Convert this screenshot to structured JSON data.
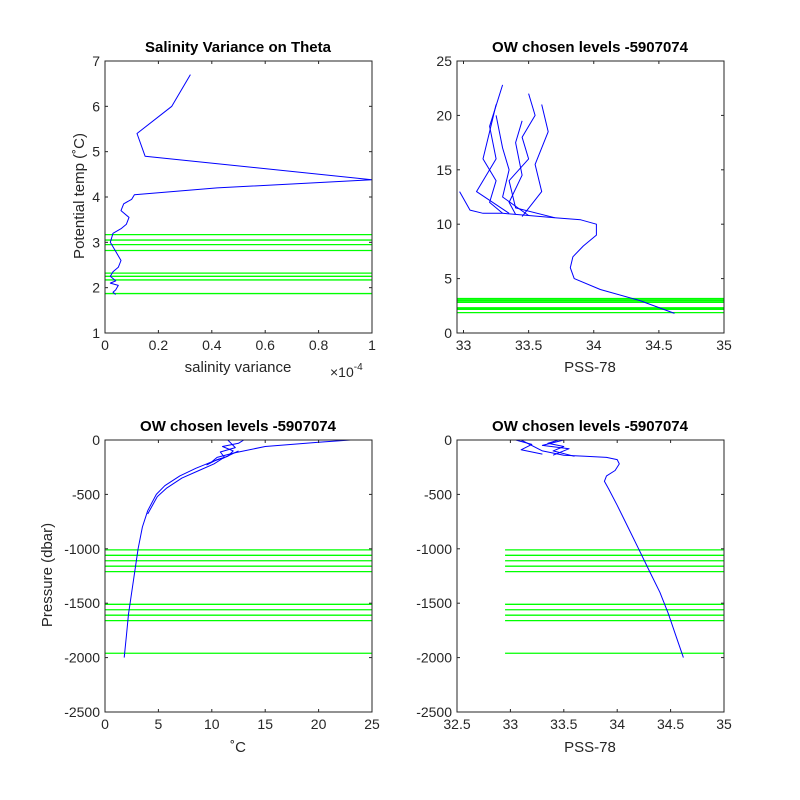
{
  "colors": {
    "profile": "#0000ff",
    "levels": "#00ff00",
    "axis": "#262626"
  },
  "chart_data": [
    {
      "type": "line",
      "title": "Salinity Variance on Theta",
      "xlabel": "salinity variance",
      "ylabel": "Potential temp (˚C)",
      "x_multiplier": "×10",
      "x_exponent": "-4",
      "xlim": [
        0,
        1
      ],
      "ylim": [
        1,
        7
      ],
      "xticks": [
        0,
        0.2,
        0.4,
        0.6,
        0.8,
        1
      ],
      "xtick_labels": [
        "0",
        "0.2",
        "0.4",
        "0.6",
        "0.8",
        "1"
      ],
      "yticks": [
        1,
        2,
        3,
        4,
        5,
        6,
        7
      ],
      "ytick_labels": [
        "1",
        "2",
        "3",
        "4",
        "5",
        "6",
        "7"
      ],
      "series": [
        {
          "x": [
            0.32,
            0.25,
            0.12,
            0.15,
            1.0,
            0.42,
            0.11,
            0.1,
            0.07,
            0.06,
            0.09,
            0.08,
            0.06,
            0.03,
            0.02,
            0.04,
            0.06,
            0.05,
            0.03,
            0.02,
            0.04,
            0.02,
            0.05,
            0.04,
            0.03,
            0.04
          ],
          "y": [
            6.7,
            6.0,
            5.4,
            4.9,
            4.38,
            4.2,
            4.05,
            3.95,
            3.85,
            3.7,
            3.55,
            3.4,
            3.3,
            3.2,
            3.0,
            2.8,
            2.6,
            2.45,
            2.35,
            2.25,
            2.15,
            2.1,
            2.05,
            1.95,
            1.9,
            1.85
          ]
        }
      ],
      "levels": [
        1.87,
        2.17,
        2.25,
        2.32,
        2.82,
        2.95,
        3.05,
        3.17
      ]
    },
    {
      "type": "line",
      "title": "OW chosen levels -5907074",
      "xlabel": "PSS-78",
      "ylabel": "",
      "xlim": [
        32.95,
        35
      ],
      "ylim": [
        0,
        25
      ],
      "xticks": [
        33,
        33.5,
        34,
        34.5,
        35
      ],
      "xtick_labels": [
        "33",
        "33.5",
        "34",
        "34.5",
        "35"
      ],
      "yticks": [
        0,
        5,
        10,
        15,
        20,
        25
      ],
      "ytick_labels": [
        "0",
        "5",
        "10",
        "15",
        "20",
        "25"
      ],
      "series": [
        {
          "x": [
            34.62,
            34.35,
            34.05,
            33.85,
            33.82,
            33.84,
            33.92,
            34.02,
            34.02,
            33.9,
            33.7,
            33.5,
            33.3,
            33.15,
            33.05,
            32.97
          ],
          "y": [
            1.8,
            3.0,
            4.0,
            5.0,
            6.0,
            7.0,
            8.0,
            9.0,
            10.0,
            10.4,
            10.6,
            10.8,
            11.0,
            11.0,
            11.3,
            13.0
          ]
        },
        {
          "x": [
            33.7,
            33.4,
            33.35,
            33.5,
            33.45,
            33.55,
            33.5
          ],
          "y": [
            10.6,
            11.5,
            14.0,
            16.0,
            18.0,
            20.0,
            22.0
          ]
        },
        {
          "x": [
            33.5,
            33.3,
            33.35,
            33.3,
            33.25
          ],
          "y": [
            10.8,
            12.5,
            15.0,
            17.0,
            20.0
          ]
        },
        {
          "x": [
            33.3,
            33.2,
            33.25,
            33.15,
            33.2,
            33.25
          ],
          "y": [
            11.0,
            12.0,
            14.0,
            16.0,
            18.5,
            21.0
          ]
        },
        {
          "x": [
            33.45,
            33.6,
            33.55,
            33.65,
            33.6
          ],
          "y": [
            10.7,
            13.0,
            15.5,
            18.5,
            21.0
          ]
        },
        {
          "x": [
            33.35,
            33.1,
            33.25,
            33.2,
            33.3
          ],
          "y": [
            11.0,
            13.0,
            16.0,
            19.0,
            22.8
          ]
        },
        {
          "x": [
            33.4,
            33.35,
            33.45,
            33.4,
            33.45
          ],
          "y": [
            10.9,
            12.0,
            14.5,
            17.5,
            19.5
          ]
        }
      ],
      "levels": [
        1.87,
        2.17,
        2.25,
        2.32,
        2.82,
        2.95,
        3.05,
        3.17
      ]
    },
    {
      "type": "line",
      "title": "OW chosen levels -5907074",
      "xlabel": "˚C",
      "ylabel": "Pressure (dbar)",
      "xlim": [
        0,
        25
      ],
      "ylim": [
        -2500,
        0
      ],
      "xticks": [
        0,
        5,
        10,
        15,
        20,
        25
      ],
      "xtick_labels": [
        "0",
        "5",
        "10",
        "15",
        "20",
        "25"
      ],
      "yticks": [
        -2500,
        -2000,
        -1500,
        -1000,
        -500,
        0
      ],
      "ytick_labels": [
        "-2500",
        "-2000",
        "-1500",
        "-1000",
        "-500",
        "0"
      ],
      "series": [
        {
          "x": [
            1.8,
            2.0,
            2.2,
            2.5,
            2.8,
            3.1,
            3.5,
            4.0,
            4.8,
            5.6,
            7.0,
            8.5,
            10.0,
            10.5,
            12.0,
            15.0,
            20.0,
            23.0
          ],
          "y": [
            -2000,
            -1800,
            -1600,
            -1400,
            -1200,
            -1000,
            -800,
            -650,
            -500,
            -420,
            -330,
            -260,
            -200,
            -160,
            -120,
            -60,
            -20,
            0
          ]
        },
        {
          "x": [
            4.0,
            4.9,
            5.8,
            7.2,
            8.8,
            10.2,
            11.0,
            12.5
          ],
          "y": [
            -680,
            -520,
            -440,
            -350,
            -280,
            -220,
            -170,
            -100
          ]
        },
        {
          "x": [
            9.5,
            10.5,
            11.5,
            12.0,
            11.0,
            12.5,
            13.0
          ],
          "y": [
            -230,
            -180,
            -150,
            -100,
            -60,
            -30,
            0
          ]
        },
        {
          "x": [
            10.0,
            11.2,
            10.8,
            12.2,
            11.5
          ],
          "y": [
            -200,
            -160,
            -110,
            -70,
            0
          ]
        }
      ],
      "levels": [
        -1010,
        -1060,
        -1110,
        -1160,
        -1210,
        -1510,
        -1560,
        -1610,
        -1660,
        -1960
      ]
    },
    {
      "type": "line",
      "title": "OW chosen levels -5907074",
      "xlabel": "PSS-78",
      "ylabel": "",
      "xlim": [
        32.5,
        35
      ],
      "ylim": [
        -2500,
        0
      ],
      "xticks": [
        32.5,
        33,
        33.5,
        34,
        34.5,
        35
      ],
      "xtick_labels": [
        "32.5",
        "33",
        "33.5",
        "34",
        "34.5",
        "35"
      ],
      "yticks": [
        -2500,
        -2000,
        -1500,
        -1000,
        -500,
        0
      ],
      "ytick_labels": [
        "-2500",
        "-2000",
        "-1500",
        "-1000",
        "-500",
        "0"
      ],
      "series": [
        {
          "x": [
            34.62,
            34.55,
            34.48,
            34.4,
            34.3,
            34.2,
            34.1,
            34.0,
            33.92,
            33.88,
            33.9,
            33.98,
            34.02,
            34.0,
            33.9,
            33.7,
            33.5,
            33.3,
            33.1
          ],
          "y": [
            -2000,
            -1800,
            -1600,
            -1400,
            -1200,
            -1000,
            -800,
            -600,
            -450,
            -380,
            -330,
            -280,
            -220,
            -180,
            -160,
            -150,
            -140,
            -100,
            0
          ]
        },
        {
          "x": [
            33.6,
            33.4,
            33.5,
            33.35,
            33.45
          ],
          "y": [
            -150,
            -100,
            -60,
            -30,
            0
          ]
        },
        {
          "x": [
            33.3,
            33.1,
            33.2,
            33.05
          ],
          "y": [
            -130,
            -90,
            -40,
            0
          ]
        },
        {
          "x": [
            33.4,
            33.55,
            33.3,
            33.5
          ],
          "y": [
            -140,
            -80,
            -50,
            0
          ]
        }
      ],
      "levels": [
        -1010,
        -1060,
        -1110,
        -1160,
        -1210,
        -1510,
        -1560,
        -1610,
        -1660,
        -1960
      ],
      "levels_xrange": [
        32.95,
        35
      ]
    }
  ]
}
